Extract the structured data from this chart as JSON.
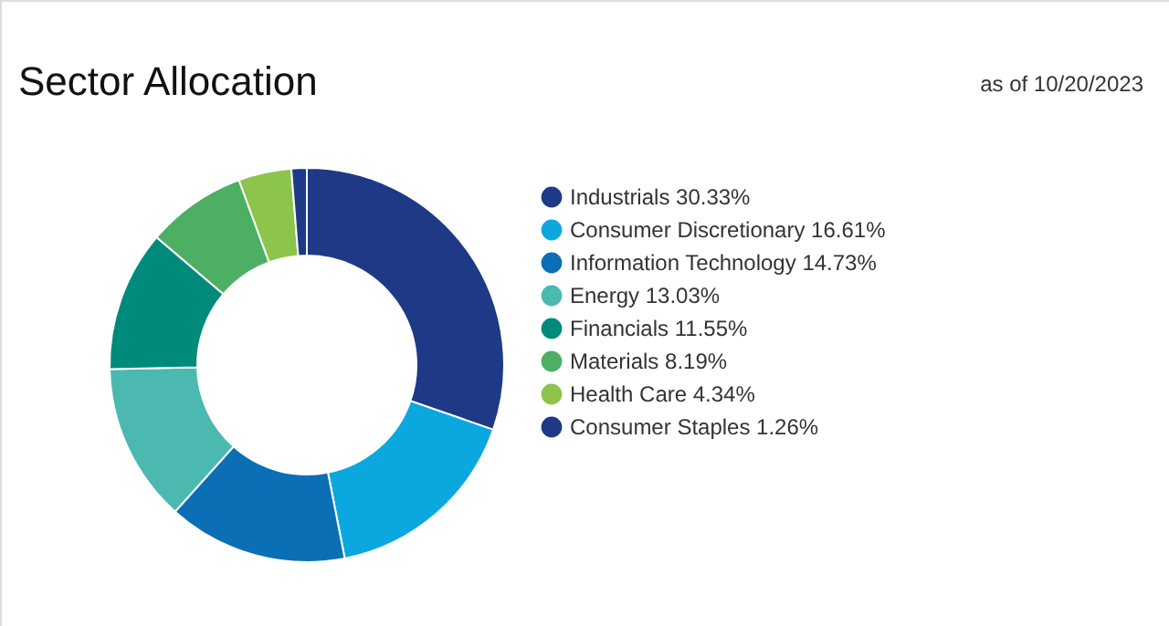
{
  "chart_data": {
    "type": "donut",
    "title": "Sector Allocation",
    "annotations": [
      "as of 10/20/2023"
    ],
    "categories": [
      "Industrials",
      "Consumer Discretionary",
      "Information Technology",
      "Energy",
      "Financials",
      "Materials",
      "Health Care",
      "Consumer Staples"
    ],
    "values": [
      30.33,
      16.61,
      14.73,
      13.03,
      11.55,
      8.19,
      4.34,
      1.26
    ],
    "value_labels": [
      "30.33%",
      "16.61%",
      "14.73%",
      "13.03%",
      "11.55%",
      "8.19%",
      "4.34%",
      "1.26%"
    ],
    "colors": [
      "#1e3a86",
      "#0ba8e0",
      "#0a6fb5",
      "#4cb9b1",
      "#008a7a",
      "#4caf63",
      "#8cc44c",
      "#1e3a86"
    ],
    "legend": "right"
  }
}
